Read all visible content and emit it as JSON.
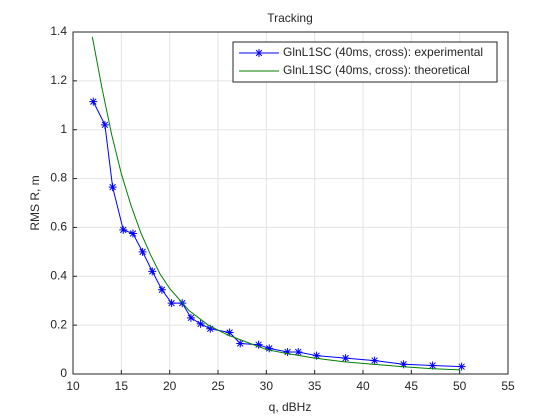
{
  "chart_data": {
    "type": "line",
    "title": "Tracking",
    "x_label": "q, dBHz",
    "y_label": "RMS R, m",
    "xlim": [
      10,
      55
    ],
    "xticks": [
      10,
      15,
      20,
      25,
      30,
      35,
      40,
      45,
      50,
      55
    ],
    "ylim": [
      0,
      1.4
    ],
    "yticks": [
      0,
      0.2,
      0.4,
      0.6,
      0.8,
      1,
      1.2,
      1.4
    ],
    "grid": true,
    "legend": "upper-right",
    "series": [
      {
        "name": "GlnL1SC (40ms, cross): experimental",
        "color": "#0000ff",
        "marker": "asterisk",
        "x": [
          12.1,
          13.3,
          14.1,
          15.2,
          16.2,
          17.2,
          18.2,
          19.2,
          20.2,
          21.3,
          22.2,
          23.2,
          24.2,
          26.2,
          27.3,
          29.2,
          30.3,
          32.2,
          33.3,
          35.2,
          38.2,
          41.2,
          44.2,
          47.2,
          50.2
        ],
        "values": [
          1.115,
          1.02,
          0.765,
          0.59,
          0.575,
          0.5,
          0.42,
          0.345,
          0.29,
          0.29,
          0.23,
          0.205,
          0.185,
          0.17,
          0.125,
          0.12,
          0.105,
          0.09,
          0.09,
          0.075,
          0.065,
          0.055,
          0.04,
          0.035,
          0.03
        ]
      },
      {
        "name": "GlnL1SC (40ms, cross): theoretical",
        "color": "#007f00",
        "x": [
          12,
          13,
          14,
          15,
          16,
          17,
          18,
          19,
          20,
          22,
          24,
          26,
          28,
          30,
          32,
          35,
          38,
          41,
          44,
          47,
          50
        ],
        "values": [
          1.38,
          1.17,
          0.98,
          0.82,
          0.69,
          0.58,
          0.49,
          0.41,
          0.35,
          0.26,
          0.2,
          0.16,
          0.13,
          0.1,
          0.085,
          0.065,
          0.05,
          0.04,
          0.03,
          0.022,
          0.017
        ]
      }
    ]
  }
}
